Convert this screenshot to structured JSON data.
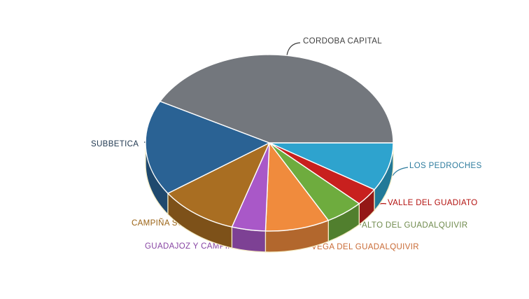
{
  "chart_data": {
    "type": "pie",
    "style": "3d",
    "title": "",
    "legend": "none",
    "data_labels": "outside labels with leader lines, colored per slice",
    "start_angle_deg": 0,
    "direction": "clockwise",
    "values_note": "percent of whole, estimated from arc angles (no numeric labels shown in image)",
    "slices": [
      {
        "label": "LOS PEDROCHES",
        "value_pct": 8.9,
        "color": "#2EA3CE",
        "label_color": "#2E7C9E"
      },
      {
        "label": "VALLE DEL GUADIATO",
        "value_pct": 3.2,
        "color": "#C8201E",
        "label_color": "#B3100E"
      },
      {
        "label": "ALTO DEL GUADALQUIVIR",
        "value_pct": 5.0,
        "color": "#6EAC3E",
        "label_color": "#6F8A4C"
      },
      {
        "label": "VEGA DEL GUADALQUIVIR",
        "value_pct": 8.4,
        "color": "#F08B3D",
        "label_color": "#C96A35"
      },
      {
        "label": "GUADAJOZ Y CAMPIÑA ESTE",
        "value_pct": 4.4,
        "color": "#A958C8",
        "label_color": "#8744A3"
      },
      {
        "label": "CAMPIÑA SUR",
        "value_pct": 10.4,
        "color": "#A96E22",
        "label_color": "#9A6213"
      },
      {
        "label": "SUBBETICA",
        "value_pct": 17.5,
        "color": "#2A6294",
        "label_color": "#223A52"
      },
      {
        "label": "CORDOBA CAPITAL",
        "value_pct": 42.2,
        "color": "#73777D",
        "label_color": "#3E3E3E"
      }
    ],
    "colors": {
      "background": "#FFFFFF",
      "slice_border": "#FFFFFF",
      "rim_border": "#F6EDC6"
    }
  }
}
